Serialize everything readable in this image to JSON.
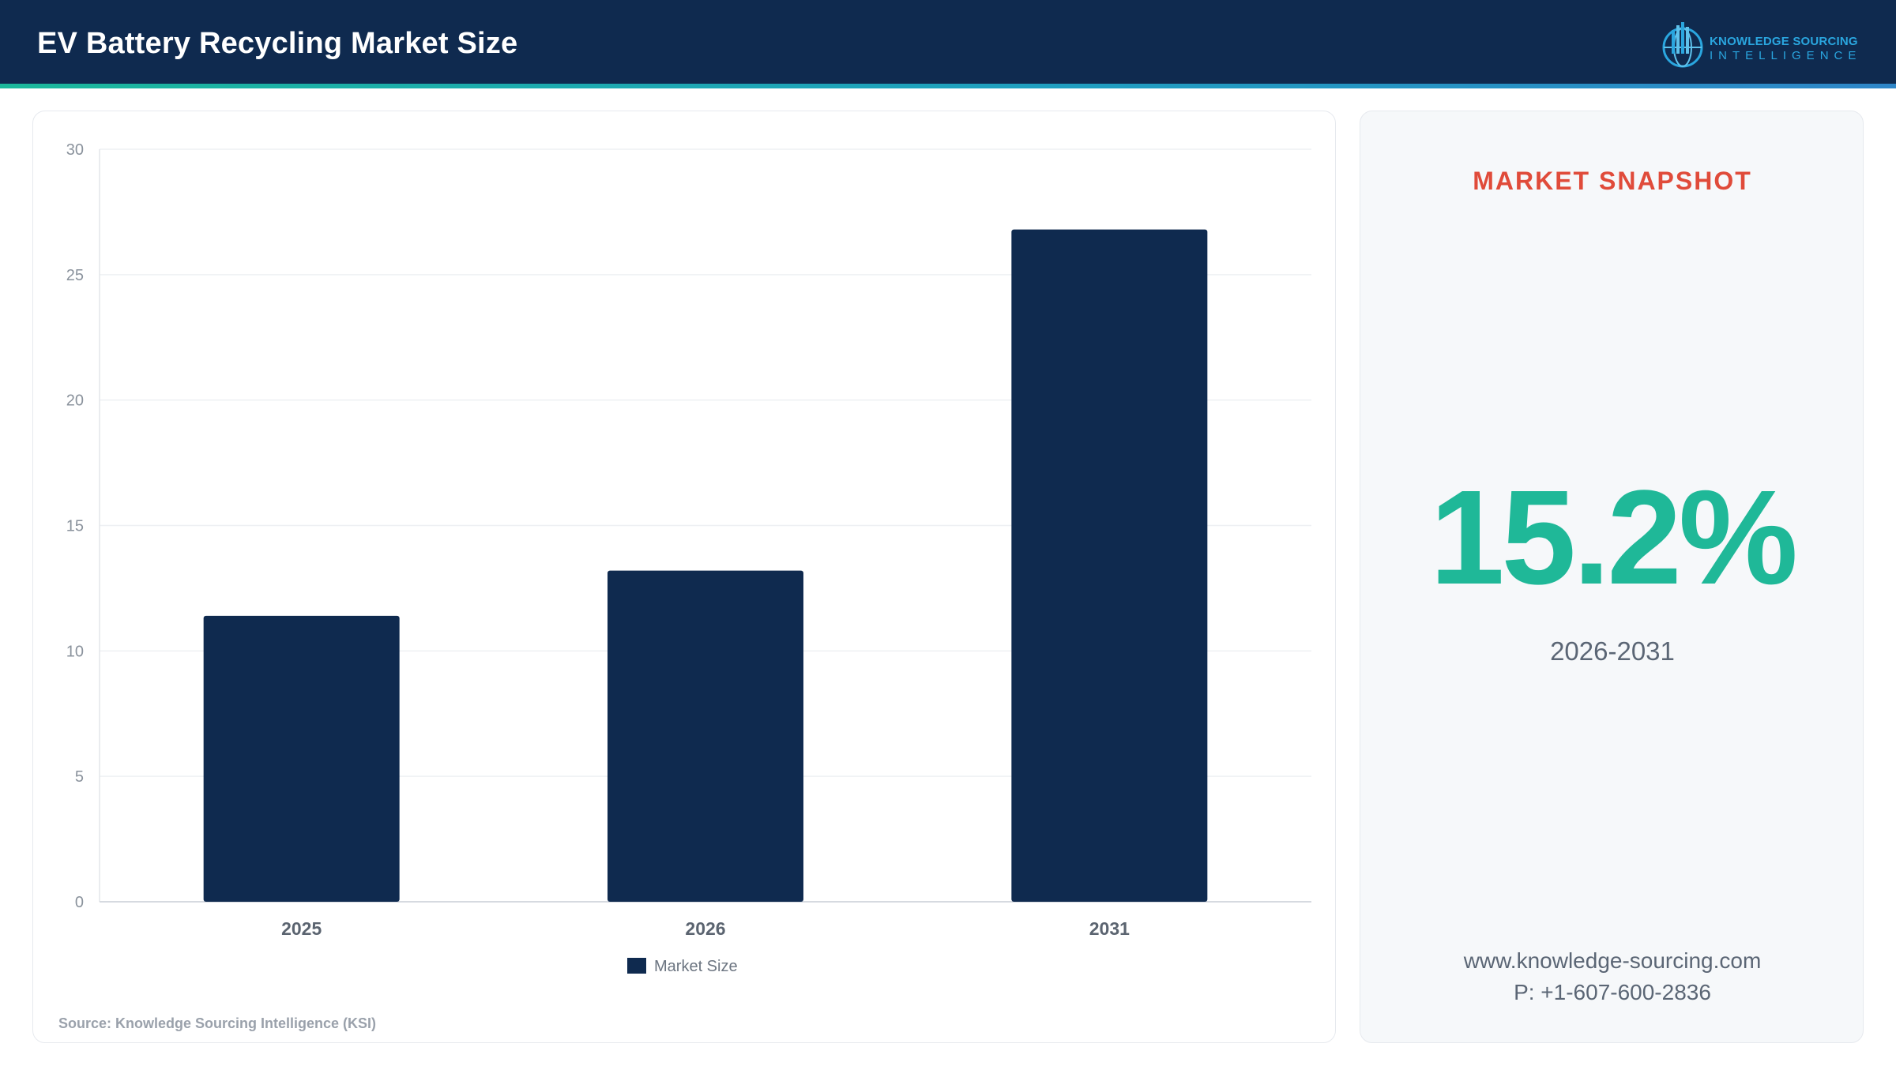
{
  "header": {
    "title": "EV Battery Recycling Market Size",
    "logo_line1": "KNOWLEDGE SOURCING",
    "logo_line2": "INTELLIGENCE"
  },
  "colors": {
    "header_bg": "#0f2a4f",
    "bar": "#0f2a4f",
    "accent_red": "#e04b3a",
    "accent_green": "#1fb898"
  },
  "chart_data": {
    "type": "bar",
    "categories": [
      "2025",
      "2026",
      "2031"
    ],
    "series": [
      {
        "name": "Market Size",
        "values": [
          11.4,
          13.2,
          26.8
        ]
      }
    ],
    "ylim": [
      0,
      30
    ],
    "yticks": [
      0,
      5,
      10,
      15,
      20,
      25,
      30
    ],
    "grid": true,
    "legend": "bottom-center",
    "source": "Source: Knowledge Sourcing Intelligence (KSI)"
  },
  "snapshot": {
    "title": "MARKET SNAPSHOT",
    "cagr": "15.2%",
    "period": "2026-2031",
    "website": "www.knowledge-sourcing.com",
    "phone": "P: +1-607-600-2836"
  }
}
